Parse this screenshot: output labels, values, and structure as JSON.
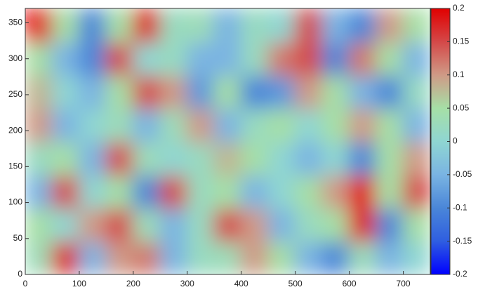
{
  "chart_data": {
    "type": "heatmap",
    "x": [
      25,
      75,
      125,
      175,
      225,
      275,
      325,
      375,
      425,
      475,
      525,
      575,
      625,
      675,
      725
    ],
    "y": [
      23,
      69,
      115,
      161,
      208,
      254,
      300,
      346
    ],
    "z": [
      [
        0.03,
        0.18,
        -0.05,
        0.1,
        0.12,
        -0.05,
        0.02,
        0.03,
        0.1,
        0.05,
        -0.05,
        -0.1,
        0.03,
        -0.05,
        0.0
      ],
      [
        0.05,
        0.0,
        0.1,
        0.15,
        0.03,
        -0.05,
        0.02,
        0.15,
        0.1,
        -0.05,
        0.02,
        0.05,
        0.18,
        -0.1,
        0.05
      ],
      [
        -0.05,
        0.15,
        0.0,
        0.05,
        -0.1,
        0.15,
        0.02,
        0.05,
        -0.05,
        0.0,
        0.05,
        0.1,
        0.2,
        0.05,
        0.15
      ],
      [
        0.02,
        0.05,
        -0.05,
        0.15,
        0.03,
        0.0,
        0.02,
        0.08,
        0.05,
        0.0,
        -0.05,
        0.0,
        -0.1,
        0.05,
        0.1
      ],
      [
        0.1,
        -0.05,
        0.0,
        0.03,
        -0.05,
        0.03,
        0.1,
        -0.05,
        0.02,
        0.05,
        0.0,
        0.05,
        0.1,
        0.05,
        -0.05
      ],
      [
        0.08,
        0.0,
        -0.05,
        0.05,
        0.15,
        0.1,
        -0.08,
        0.05,
        -0.1,
        -0.08,
        0.1,
        0.05,
        -0.05,
        -0.1,
        0.02
      ],
      [
        0.05,
        -0.05,
        -0.1,
        0.15,
        0.0,
        0.02,
        -0.05,
        -0.05,
        0.02,
        0.12,
        0.15,
        -0.1,
        0.12,
        0.05,
        -0.05
      ],
      [
        0.2,
        0.05,
        -0.1,
        0.05,
        0.18,
        0.02,
        0.03,
        -0.05,
        0.02,
        0.0,
        0.15,
        -0.05,
        -0.1,
        0.1,
        0.05
      ]
    ],
    "xlim": [
      0,
      750
    ],
    "xticks": [
      0,
      100,
      200,
      300,
      400,
      500,
      600,
      700
    ],
    "ylim": [
      0,
      370
    ],
    "yticks": [
      0,
      50,
      100,
      150,
      200,
      250,
      300,
      350
    ],
    "zlim": [
      -0.2,
      0.2
    ],
    "zticks": [
      -0.2,
      -0.15,
      -0.1,
      -0.05,
      0,
      0.05,
      0.1,
      0.15,
      0.2
    ],
    "colormap": [
      "#0000ff",
      "#2f5ee0",
      "#4a86d8",
      "#7ab4e2",
      "#8fd6d2",
      "#a6dfa6",
      "#cf9a86",
      "#d44848",
      "#e00000"
    ],
    "colorbar": true
  }
}
